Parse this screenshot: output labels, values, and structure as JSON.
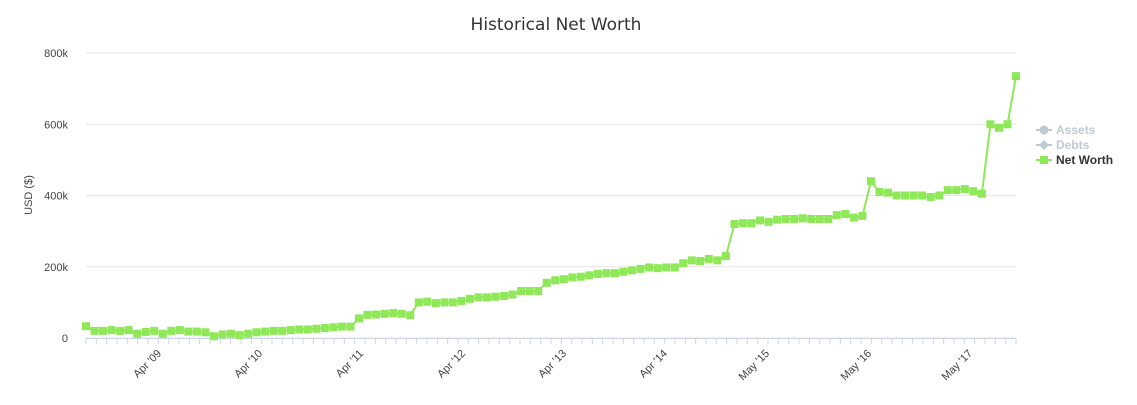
{
  "chart_data": {
    "type": "line",
    "title": "Historical Net Worth",
    "ylabel": "USD ($)",
    "xlabel": "",
    "ylim": [
      0,
      800000
    ],
    "y_ticks": [
      {
        "value": 0,
        "label": "0"
      },
      {
        "value": 200000,
        "label": "200k"
      },
      {
        "value": 400000,
        "label": "400k"
      },
      {
        "value": 600000,
        "label": "600k"
      },
      {
        "value": 800000,
        "label": "800k"
      }
    ],
    "x_tick_labels": [
      "Apr '09",
      "Apr '10",
      "Apr '11",
      "Apr '12",
      "Apr '13",
      "Apr '14",
      "May '15",
      "May '16",
      "May '17"
    ],
    "grid": true,
    "legend_position": "right",
    "series": [
      {
        "name": "Assets",
        "visible": false,
        "color": "#bfc9d6",
        "values": []
      },
      {
        "name": "Debts",
        "visible": false,
        "color": "#bfc9d6",
        "values": []
      },
      {
        "name": "Net Worth",
        "visible": true,
        "color": "#8ee858",
        "values": [
          33000,
          20000,
          20000,
          22000,
          20000,
          22000,
          12000,
          17000,
          20000,
          12000,
          20000,
          22000,
          18000,
          18000,
          16000,
          5000,
          10000,
          12000,
          8000,
          12000,
          16000,
          18000,
          20000,
          20000,
          22000,
          24000,
          24000,
          26000,
          28000,
          30000,
          32000,
          32000,
          55000,
          65000,
          66000,
          68000,
          70000,
          68000,
          64000,
          100000,
          102000,
          98000,
          100000,
          100000,
          104000,
          110000,
          114000,
          114000,
          116000,
          118000,
          122000,
          132000,
          132000,
          132000,
          155000,
          162000,
          165000,
          170000,
          172000,
          176000,
          180000,
          182000,
          182000,
          186000,
          190000,
          194000,
          198000,
          196000,
          198000,
          198000,
          210000,
          218000,
          216000,
          222000,
          218000,
          230000,
          320000,
          322000,
          322000,
          330000,
          326000,
          332000,
          334000,
          334000,
          336000,
          334000,
          334000,
          334000,
          345000,
          348000,
          338000,
          343000,
          440000,
          410000,
          408000,
          400000,
          400000,
          400000,
          400000,
          396000,
          400000,
          415000,
          415000,
          418000,
          412000,
          405000,
          600000,
          590000,
          600000,
          735000
        ]
      }
    ]
  }
}
